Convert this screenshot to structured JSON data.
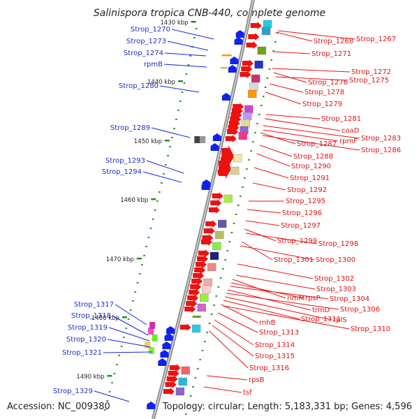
{
  "title": "Salinispora tropica CNB-440, complete genome",
  "accession": "Accession: NC_009380",
  "topology": "Topology: circular; Length: 5,183,331 bp; Genes: 4,596",
  "colors": {
    "backbone": "#8c8c8c",
    "forward_gene": "#ee1111",
    "reverse_gene": "#1122ee",
    "label_forward": "#e01010",
    "label_reverse": "#1a2fc8",
    "tick": "#228b22"
  },
  "kbp_markers": [
    "1430 kbp",
    "1440 kbp",
    "1450 kbp",
    "1460 kbp",
    "1470 kbp",
    "1480 kbp",
    "1490 kbp"
  ],
  "left_labels": [
    "Strop_1270",
    "Strop_1273",
    "Strop_1274",
    "rpmB",
    "Strop_1280",
    "Strop_1289",
    "Strop_1293",
    "Strop_1294",
    "Strop_1317",
    "Strop_1318",
    "Strop_1319",
    "Strop_1320",
    "Strop_1321",
    "Strop_1329"
  ],
  "right_labels": [
    "Strop_1268",
    "Strop_1267",
    "Strop_1271",
    "Strop_1272",
    "Strop_1276",
    "Strop_1275",
    "Strop_1278",
    "Strop_1279",
    "Strop_1281",
    "coaD",
    "Strop_1283",
    "rpmF",
    "Strop_1287",
    "Strop_1286",
    "Strop_1288",
    "Strop_1290",
    "Strop_1291",
    "Strop_1292",
    "Strop_1295",
    "Strop_1296",
    "Strop_1297",
    "Strop_1299",
    "Strop_1298",
    "Strop_1301",
    "Strop_1300",
    "Strop_1302",
    "Strop_1303",
    "rimM",
    "rpsP",
    "Strop_1304",
    "trmD",
    "Strop_1306",
    "Strop_1311",
    "rplS",
    "rnhB",
    "Strop_1310",
    "Strop_1313",
    "Strop_1314",
    "Strop_1315",
    "Strop_1316",
    "rpsB",
    "tsf"
  ]
}
